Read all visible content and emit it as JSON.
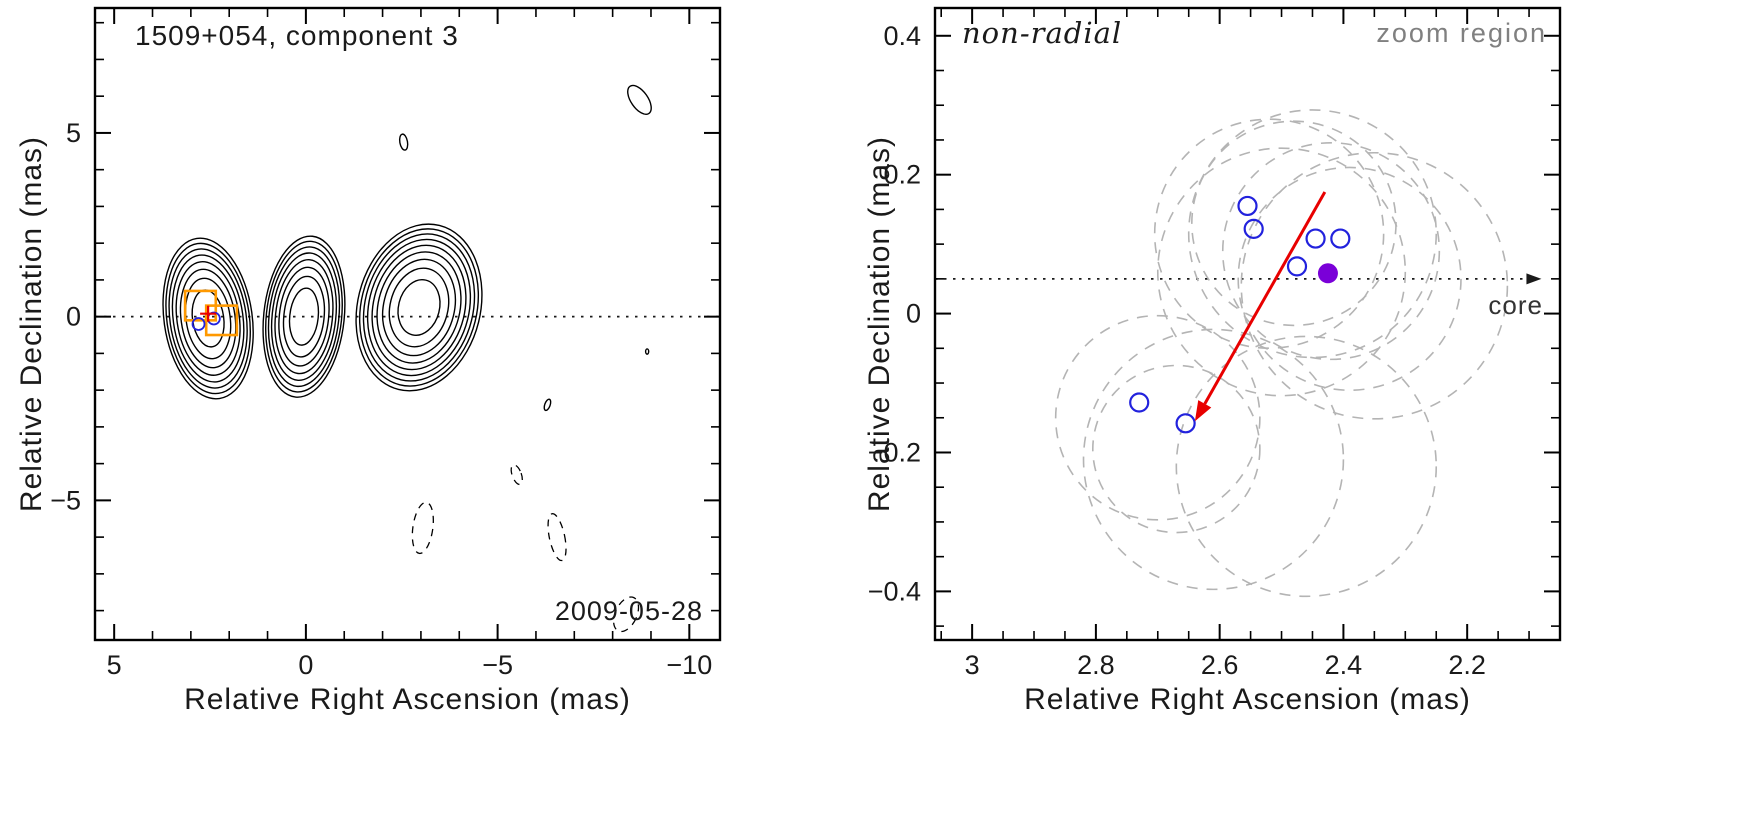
{
  "figure": {
    "background": "#ffffff",
    "colors": {
      "contour": "#000000",
      "dashed_circle": "#b4b4b4",
      "open_point": "#2222dd",
      "filled_point": "#7a00d8",
      "arrow": "#e80000",
      "square_marker": "#ff9900",
      "dotted_line": "#1a1a1a",
      "tick_text": "#1a1a1a",
      "frame": "#000000"
    }
  },
  "chart_data": [
    {
      "type": "contour",
      "title": "1509+054, component 3",
      "date_label": "2009-05-28",
      "xlabel": "Relative Right Ascension (mas)",
      "ylabel": "Relative Declination (mas)",
      "xlim": [
        5.5,
        -10.8
      ],
      "ylim": [
        -8.8,
        8.4
      ],
      "grid": false,
      "xticks": [
        {
          "value": 5,
          "label": "5"
        },
        {
          "value": 0,
          "label": "0"
        },
        {
          "value": -5,
          "label": "−5"
        },
        {
          "value": -10,
          "label": "−10"
        }
      ],
      "yticks": [
        {
          "value": 5,
          "label": "5"
        },
        {
          "value": 0,
          "label": "0"
        },
        {
          "value": -5,
          "label": "−5"
        }
      ],
      "xminor_step": 1,
      "yminor_step": 1,
      "dotted_line_y": 0,
      "contour_blobs": [
        {
          "cx": 2.55,
          "cy": -0.05,
          "rx": 1.15,
          "ry": 2.2,
          "rot": -8,
          "levels": 8
        },
        {
          "cx": 0.05,
          "cy": 0.0,
          "rx": 1.05,
          "ry": 2.2,
          "rot": 6,
          "levels": 8
        },
        {
          "cx": -2.95,
          "cy": 0.25,
          "rx": 1.6,
          "ry": 2.3,
          "rot": 14,
          "levels": 9
        }
      ],
      "small_contours": [
        {
          "cx": -8.7,
          "cy": 5.9,
          "rx": 0.22,
          "ry": 0.45,
          "rot": -35
        },
        {
          "cx": -2.55,
          "cy": 4.75,
          "rx": 0.1,
          "ry": 0.22,
          "rot": -10
        },
        {
          "cx": -6.3,
          "cy": -2.4,
          "rx": 0.07,
          "ry": 0.16,
          "rot": 20
        },
        {
          "cx": -8.9,
          "cy": -0.95,
          "rx": 0.04,
          "ry": 0.07,
          "rot": 0
        }
      ],
      "dashed_contours": [
        {
          "cx": -3.05,
          "cy": -5.75,
          "rx": 0.26,
          "ry": 0.7,
          "rot": 8
        },
        {
          "cx": -5.5,
          "cy": -4.3,
          "rx": 0.12,
          "ry": 0.28,
          "rot": -20
        },
        {
          "cx": -6.55,
          "cy": -6.0,
          "rx": 0.2,
          "ry": 0.65,
          "rot": -12
        },
        {
          "cx": -8.35,
          "cy": -8.1,
          "rx": 0.28,
          "ry": 0.5,
          "rot": 25
        }
      ],
      "orange_squares": [
        {
          "x": 2.75,
          "y": 0.3,
          "size": 0.8
        },
        {
          "x": 2.2,
          "y": -0.1,
          "size": 0.8
        }
      ],
      "blue_circles": [
        {
          "x": 2.8,
          "y": -0.2
        },
        {
          "x": 2.4,
          "y": -0.05
        }
      ],
      "red_cross": {
        "x": 2.55,
        "y": 0.08
      }
    },
    {
      "type": "scatter",
      "corner_label": "non-radial",
      "zoom_label": "zoom region",
      "core_label": "core",
      "xlabel": "Relative Right Ascension (mas)",
      "ylabel": "Relative Declination (mas)",
      "xlim": [
        3.06,
        2.05
      ],
      "ylim": [
        -0.47,
        0.44
      ],
      "grid": false,
      "xticks": [
        {
          "value": 3,
          "label": "3"
        },
        {
          "value": 2.8,
          "label": "2.8"
        },
        {
          "value": 2.6,
          "label": "2.6"
        },
        {
          "value": 2.4,
          "label": "2.4"
        },
        {
          "value": 2.2,
          "label": "2.2"
        }
      ],
      "yticks": [
        {
          "value": 0.4,
          "label": "0.4"
        },
        {
          "value": 0.2,
          "label": "0.2"
        },
        {
          "value": 0,
          "label": "0"
        },
        {
          "value": -0.2,
          "label": "−0.2"
        },
        {
          "value": -0.4,
          "label": "−0.4"
        }
      ],
      "xminor_step": 0.05,
      "yminor_step": 0.05,
      "core_line": {
        "y": 0.05,
        "x_start": 3.06,
        "x_end": 2.08
      },
      "dashed_circles": [
        {
          "cx": 2.52,
          "cy": 0.115,
          "r": 0.185
        },
        {
          "cx": 2.48,
          "cy": 0.13,
          "r": 0.165
        },
        {
          "cx": 2.45,
          "cy": 0.115,
          "r": 0.2
        },
        {
          "cx": 2.5,
          "cy": 0.06,
          "r": 0.2
        },
        {
          "cx": 2.42,
          "cy": 0.09,
          "r": 0.175
        },
        {
          "cx": 2.39,
          "cy": 0.05,
          "r": 0.18
        },
        {
          "cx": 2.35,
          "cy": 0.04,
          "r": 0.215
        },
        {
          "cx": 2.67,
          "cy": -0.195,
          "r": 0.135
        },
        {
          "cx": 2.7,
          "cy": -0.15,
          "r": 0.165
        },
        {
          "cx": 2.61,
          "cy": -0.21,
          "r": 0.21
        },
        {
          "cx": 2.46,
          "cy": -0.22,
          "r": 0.21
        }
      ],
      "points_open": [
        {
          "x": 2.555,
          "y": 0.155
        },
        {
          "x": 2.545,
          "y": 0.122
        },
        {
          "x": 2.445,
          "y": 0.108
        },
        {
          "x": 2.405,
          "y": 0.108
        },
        {
          "x": 2.475,
          "y": 0.068
        },
        {
          "x": 2.73,
          "y": -0.128
        },
        {
          "x": 2.655,
          "y": -0.158
        }
      ],
      "point_filled": {
        "x": 2.425,
        "y": 0.058
      },
      "motion_arrow": {
        "x1": 2.43,
        "y1": 0.175,
        "x2": 2.64,
        "y2": -0.155
      }
    }
  ]
}
